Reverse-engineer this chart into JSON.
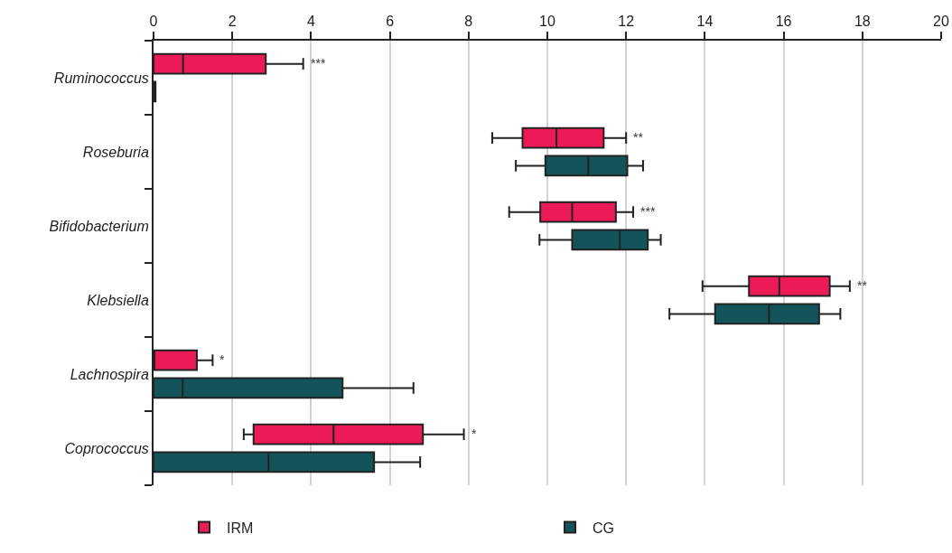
{
  "chart_data": {
    "type": "box",
    "orientation": "horizontal",
    "categories": [
      "Ruminococcus",
      "Roseburia",
      "Bifidobacterium",
      "Klebsiella",
      "Lachnospira",
      "Coprococcus"
    ],
    "series": [
      {
        "name": "IRM",
        "color": "#ec1a57",
        "boxes": [
          {
            "low": 0,
            "q1": 0,
            "median": 0.75,
            "q3": 2.85,
            "high": 3.8
          },
          {
            "low": 8.6,
            "q1": 9.37,
            "median": 10.23,
            "q3": 11.43,
            "high": 12.0
          },
          {
            "low": 9.03,
            "q1": 9.82,
            "median": 10.63,
            "q3": 11.74,
            "high": 12.18
          },
          {
            "low": 13.94,
            "q1": 15.12,
            "median": 15.89,
            "q3": 17.17,
            "high": 17.68
          },
          {
            "low": 0,
            "q1": 0,
            "median": 0,
            "q3": 1.1,
            "high": 1.5
          },
          {
            "low": 2.29,
            "q1": 2.54,
            "median": 4.57,
            "q3": 6.84,
            "high": 7.88
          }
        ]
      },
      {
        "name": "CG",
        "color": "#13545a",
        "boxes": [
          {
            "low": 0,
            "q1": 0,
            "median": 0.05,
            "q3": 0.05,
            "high": 0.05
          },
          {
            "low": 9.2,
            "q1": 9.95,
            "median": 11.04,
            "q3": 12.03,
            "high": 12.43
          },
          {
            "low": 9.8,
            "q1": 10.63,
            "median": 11.84,
            "q3": 12.55,
            "high": 12.88
          },
          {
            "low": 13.1,
            "q1": 14.26,
            "median": 15.63,
            "q3": 16.9,
            "high": 17.44
          },
          {
            "low": 0,
            "q1": 0,
            "median": 0.74,
            "q3": 4.8,
            "high": 6.6
          },
          {
            "low": 0,
            "q1": 0,
            "median": 2.92,
            "q3": 5.6,
            "high": 6.77
          }
        ]
      }
    ],
    "xlim": [
      0,
      20
    ],
    "xticks": [
      0,
      2,
      4,
      6,
      8,
      10,
      12,
      14,
      16,
      18,
      20
    ],
    "grid": "x",
    "legend": "bottom",
    "annotations": [
      "***",
      "**",
      "***",
      "**",
      "*",
      "*"
    ]
  }
}
